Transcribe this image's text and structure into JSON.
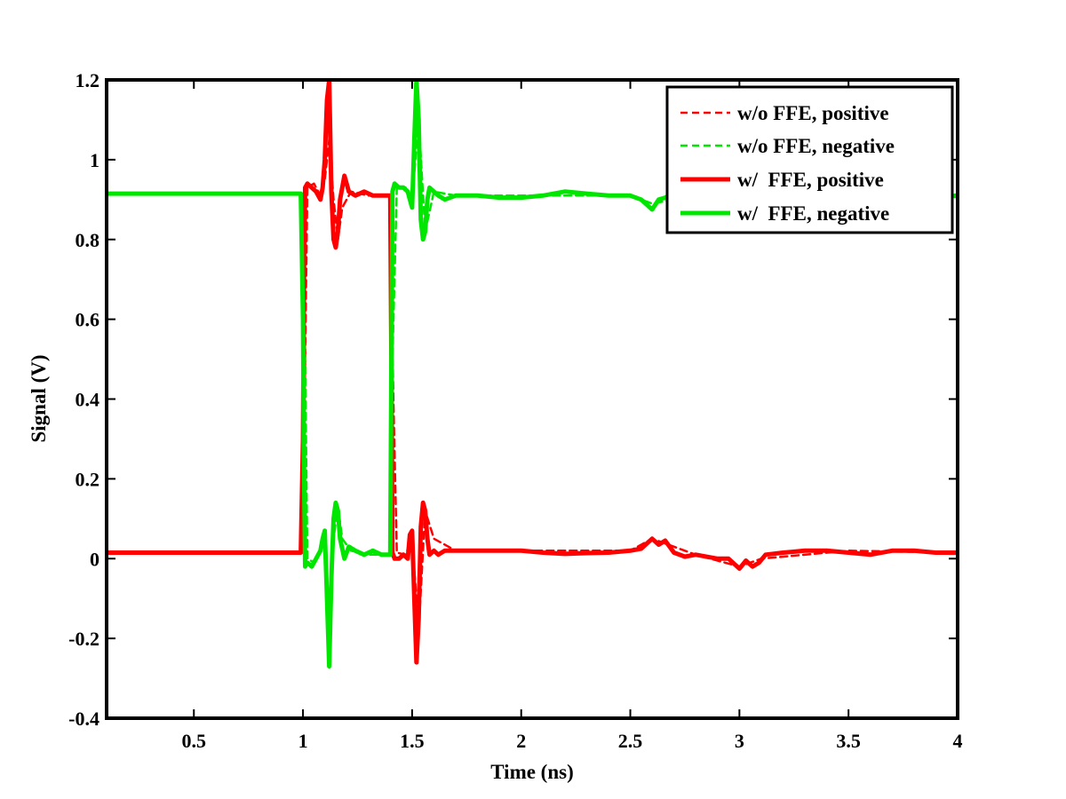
{
  "chart_data": {
    "type": "line",
    "title": "",
    "xlabel": "Time (ns)",
    "ylabel": "Signal (V)",
    "xlim": [
      0.1,
      4
    ],
    "ylim": [
      -0.4,
      1.2
    ],
    "xticks": [
      0.5,
      1,
      1.5,
      2,
      2.5,
      3,
      3.5,
      4
    ],
    "xtick_labels": [
      "0.5",
      "1",
      "1.5",
      "2",
      "2.5",
      "3",
      "3.5",
      "4"
    ],
    "yticks": [
      -0.4,
      -0.2,
      0,
      0.2,
      0.4,
      0.6,
      0.8,
      1,
      1.2
    ],
    "ytick_labels": [
      "-0.4",
      "-0.2",
      "0",
      "0.2",
      "0.4",
      "0.6",
      "0.8",
      "1",
      "1.2"
    ],
    "grid": false,
    "legend_position": "top-right",
    "series": [
      {
        "name": "w/o FFE, positive",
        "color": "#ff0000",
        "style": "dashed",
        "x": [
          0.1,
          1.0,
          1.01,
          1.02,
          1.05,
          1.08,
          1.1,
          1.12,
          1.14,
          1.16,
          1.18,
          1.22,
          1.3,
          1.4,
          1.41,
          1.43,
          1.47,
          1.5,
          1.53,
          1.56,
          1.6,
          1.7,
          2.0,
          2.5,
          2.6,
          2.7,
          2.8,
          3.0,
          3.1,
          3.5,
          4.0
        ],
        "y": [
          0.015,
          0.015,
          0.5,
          0.93,
          0.94,
          0.91,
          0.95,
          1.05,
          0.9,
          0.8,
          0.88,
          0.92,
          0.91,
          0.91,
          0.5,
          0.015,
          0.01,
          0.05,
          -0.18,
          0.12,
          0.05,
          0.02,
          0.02,
          0.02,
          0.05,
          0.03,
          0.01,
          -0.02,
          0.0,
          0.02,
          0.015
        ]
      },
      {
        "name": "w/o FFE, negative",
        "color": "#00e600",
        "style": "dashed",
        "x": [
          0.1,
          1.0,
          1.01,
          1.02,
          1.05,
          1.08,
          1.1,
          1.12,
          1.14,
          1.16,
          1.18,
          1.22,
          1.3,
          1.4,
          1.41,
          1.43,
          1.47,
          1.5,
          1.53,
          1.56,
          1.6,
          1.7,
          2.0,
          2.5,
          2.6,
          2.7,
          2.8,
          3.0,
          3.1,
          3.5,
          4.0
        ],
        "y": [
          0.915,
          0.915,
          0.5,
          0.0,
          -0.01,
          0.02,
          0.05,
          -0.15,
          0.05,
          0.13,
          0.05,
          0.02,
          0.01,
          0.01,
          0.5,
          0.93,
          0.93,
          0.9,
          1.1,
          0.82,
          0.92,
          0.91,
          0.91,
          0.91,
          0.89,
          0.9,
          0.915,
          0.92,
          0.92,
          0.915,
          0.91
        ]
      },
      {
        "name": "w/  FFE, positive",
        "color": "#ff0000",
        "style": "solid",
        "x": [
          0.1,
          0.5,
          0.99,
          1.0,
          1.005,
          1.01,
          1.02,
          1.04,
          1.06,
          1.08,
          1.09,
          1.1,
          1.11,
          1.12,
          1.13,
          1.14,
          1.15,
          1.16,
          1.17,
          1.19,
          1.21,
          1.24,
          1.28,
          1.32,
          1.36,
          1.39,
          1.4,
          1.405,
          1.41,
          1.42,
          1.44,
          1.46,
          1.48,
          1.49,
          1.5,
          1.51,
          1.52,
          1.53,
          1.54,
          1.55,
          1.56,
          1.57,
          1.58,
          1.6,
          1.62,
          1.65,
          1.7,
          1.8,
          1.9,
          2.0,
          2.1,
          2.2,
          2.3,
          2.4,
          2.5,
          2.55,
          2.6,
          2.63,
          2.66,
          2.68,
          2.7,
          2.75,
          2.8,
          2.9,
          2.95,
          3.0,
          3.03,
          3.06,
          3.09,
          3.12,
          3.2,
          3.3,
          3.4,
          3.5,
          3.6,
          3.7,
          3.8,
          3.9,
          4.0
        ],
        "y": [
          0.015,
          0.015,
          0.015,
          0.3,
          0.75,
          0.93,
          0.94,
          0.93,
          0.92,
          0.9,
          0.93,
          1.0,
          1.15,
          1.2,
          0.92,
          0.8,
          0.78,
          0.82,
          0.9,
          0.96,
          0.92,
          0.91,
          0.92,
          0.91,
          0.91,
          0.91,
          0.91,
          0.5,
          0.015,
          0.0,
          0.0,
          0.01,
          0.0,
          0.06,
          0.07,
          -0.1,
          -0.26,
          -0.15,
          0.08,
          0.14,
          0.12,
          0.05,
          0.01,
          0.02,
          0.01,
          0.02,
          0.02,
          0.02,
          0.02,
          0.02,
          0.015,
          0.012,
          0.014,
          0.015,
          0.02,
          0.025,
          0.05,
          0.035,
          0.045,
          0.03,
          0.015,
          0.005,
          0.01,
          0.0,
          0.0,
          -0.025,
          -0.005,
          -0.02,
          -0.01,
          0.01,
          0.015,
          0.02,
          0.02,
          0.015,
          0.01,
          0.02,
          0.02,
          0.015,
          0.015
        ]
      },
      {
        "name": "w/  FFE, negative",
        "color": "#00e600",
        "style": "solid",
        "x": [
          0.1,
          0.5,
          0.99,
          1.0,
          1.005,
          1.01,
          1.02,
          1.04,
          1.06,
          1.08,
          1.09,
          1.1,
          1.11,
          1.12,
          1.13,
          1.14,
          1.15,
          1.16,
          1.17,
          1.19,
          1.21,
          1.24,
          1.28,
          1.32,
          1.36,
          1.39,
          1.4,
          1.405,
          1.41,
          1.42,
          1.44,
          1.46,
          1.48,
          1.49,
          1.5,
          1.51,
          1.52,
          1.53,
          1.54,
          1.55,
          1.56,
          1.57,
          1.58,
          1.6,
          1.62,
          1.65,
          1.7,
          1.8,
          1.9,
          2.0,
          2.1,
          2.2,
          2.3,
          2.4,
          2.5,
          2.55,
          2.6,
          2.63,
          2.66,
          2.68,
          2.7,
          2.75,
          2.8,
          2.9,
          2.95,
          3.0,
          3.03,
          3.06,
          3.09,
          3.12,
          3.2,
          3.3,
          3.4,
          3.5,
          3.6,
          3.7,
          3.8,
          3.9,
          4.0
        ],
        "y": [
          0.915,
          0.915,
          0.915,
          0.6,
          0.2,
          -0.02,
          -0.01,
          -0.02,
          0.0,
          0.02,
          0.05,
          0.07,
          -0.1,
          -0.27,
          -0.05,
          0.1,
          0.14,
          0.12,
          0.05,
          0.0,
          0.03,
          0.02,
          0.01,
          0.02,
          0.01,
          0.01,
          0.01,
          0.5,
          0.92,
          0.94,
          0.93,
          0.93,
          0.92,
          0.9,
          0.88,
          1.05,
          1.2,
          1.1,
          0.85,
          0.8,
          0.82,
          0.9,
          0.93,
          0.92,
          0.91,
          0.9,
          0.91,
          0.91,
          0.905,
          0.905,
          0.91,
          0.92,
          0.915,
          0.91,
          0.91,
          0.9,
          0.875,
          0.9,
          0.905,
          0.91,
          0.915,
          0.91,
          0.915,
          0.92,
          0.92,
          0.92,
          0.92,
          0.915,
          0.92,
          0.915,
          0.91,
          0.915,
          0.91,
          0.91,
          0.905,
          0.91,
          0.91,
          0.905,
          0.91
        ]
      }
    ]
  }
}
